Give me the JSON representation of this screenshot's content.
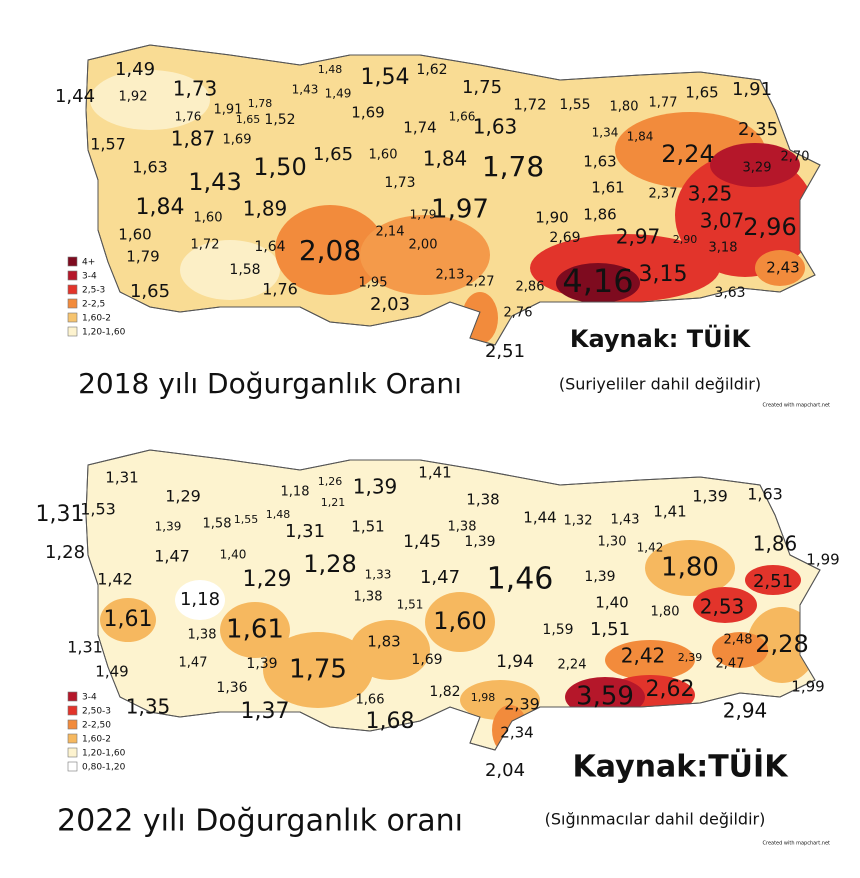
{
  "maps": [
    {
      "title": "2018 yılı Doğurganlık Oranı",
      "note": "(Suriyeliler dahil değildir)",
      "source": "Kaynak: TÜİK",
      "credit": "Created with mapchart.net",
      "legend": [
        {
          "label": "4+",
          "color": "#7e0b1f"
        },
        {
          "label": "3-4",
          "color": "#b5172a"
        },
        {
          "label": "2,5-3",
          "color": "#e2342b"
        },
        {
          "label": "2-2,5",
          "color": "#f28b3c"
        },
        {
          "label": "1,60-2",
          "color": "#f6c46f"
        },
        {
          "label": "1,20-1,60",
          "color": "#fdf3cf"
        }
      ],
      "labels": [
        "1,49",
        "1,44",
        "1,92",
        "1,73",
        "1,76",
        "1,91",
        "1,78",
        "1,65",
        "1,52",
        "1,48",
        "1,43",
        "1,49",
        "1,54",
        "1,62",
        "1,75",
        "1,69",
        "1,66",
        "1,74",
        "1,72",
        "1,55",
        "1,80",
        "1,77",
        "1,65",
        "1,91",
        "1,63",
        "1,34",
        "1,84",
        "2,35",
        "1,57",
        "1,87",
        "1,69",
        "1,65",
        "1,60",
        "1,84",
        "1,78",
        "1,63",
        "2,24",
        "2,70",
        "3,29",
        "1,63",
        "1,50",
        "1,43",
        "1,73",
        "1,61",
        "3,25",
        "2,37",
        "1,84",
        "1,60",
        "1,89",
        "1,79",
        "1,97",
        "1,90",
        "1,86",
        "3,07",
        "2,96",
        "1,60",
        "1,72",
        "1,64",
        "2,08",
        "2,14",
        "2,00",
        "2,69",
        "2,97",
        "2,90",
        "3,18",
        "1,79",
        "1,58",
        "2,13",
        "1,95",
        "2,27",
        "2,86",
        "4,16",
        "3,15",
        "2,43",
        "1,65",
        "1,76",
        "2,03",
        "2,76",
        "3,63",
        "2,51"
      ]
    },
    {
      "title": "2022 yılı Doğurganlık oranı",
      "note": "(Sığınmacılar dahil değildir)",
      "source": "Kaynak:TÜİK",
      "credit": "Created with mapchart.net",
      "legend": [
        {
          "label": "3-4",
          "color": "#b5172a"
        },
        {
          "label": "2,50-3",
          "color": "#e2342b"
        },
        {
          "label": "2-2,50",
          "color": "#f28b3c"
        },
        {
          "label": "1,60-2",
          "color": "#f6b85f"
        },
        {
          "label": "1,20-1,60",
          "color": "#fdf3cf"
        },
        {
          "label": "0,80-1,20",
          "color": "#ffffff"
        }
      ],
      "labels": [
        "1,31",
        "1,31",
        "1,53",
        "1,29",
        "1,18",
        "1,26",
        "1,21",
        "1,39",
        "1,41",
        "1,48",
        "1,55",
        "1,39",
        "1,58",
        "1,31",
        "1,51",
        "1,38",
        "1,38",
        "1,44",
        "1,32",
        "1,43",
        "1,41",
        "1,39",
        "1,63",
        "1,45",
        "1,39",
        "1,30",
        "1,42",
        "1,28",
        "1,47",
        "1,40",
        "1,28",
        "1,33",
        "1,86",
        "1,99",
        "1,42",
        "1,29",
        "1,47",
        "1,46",
        "1,39",
        "1,80",
        "2,51",
        "1,18",
        "1,38",
        "1,40",
        "1,51",
        "1,61",
        "1,80",
        "2,53",
        "1,60",
        "1,59",
        "1,51",
        "2,28",
        "1,38",
        "1,61",
        "1,83",
        "2,48",
        "1,31",
        "2,39",
        "2,42",
        "2,47",
        "1,49",
        "1,39",
        "1,69",
        "1,94",
        "2,24",
        "1,75",
        "1,47",
        "1,36",
        "2,62",
        "3,59",
        "1,99",
        "1,35",
        "1,66",
        "1,82",
        "1,98",
        "2,39",
        "1,37",
        "1,68",
        "2,94",
        "2,34",
        "2,04"
      ]
    }
  ]
}
